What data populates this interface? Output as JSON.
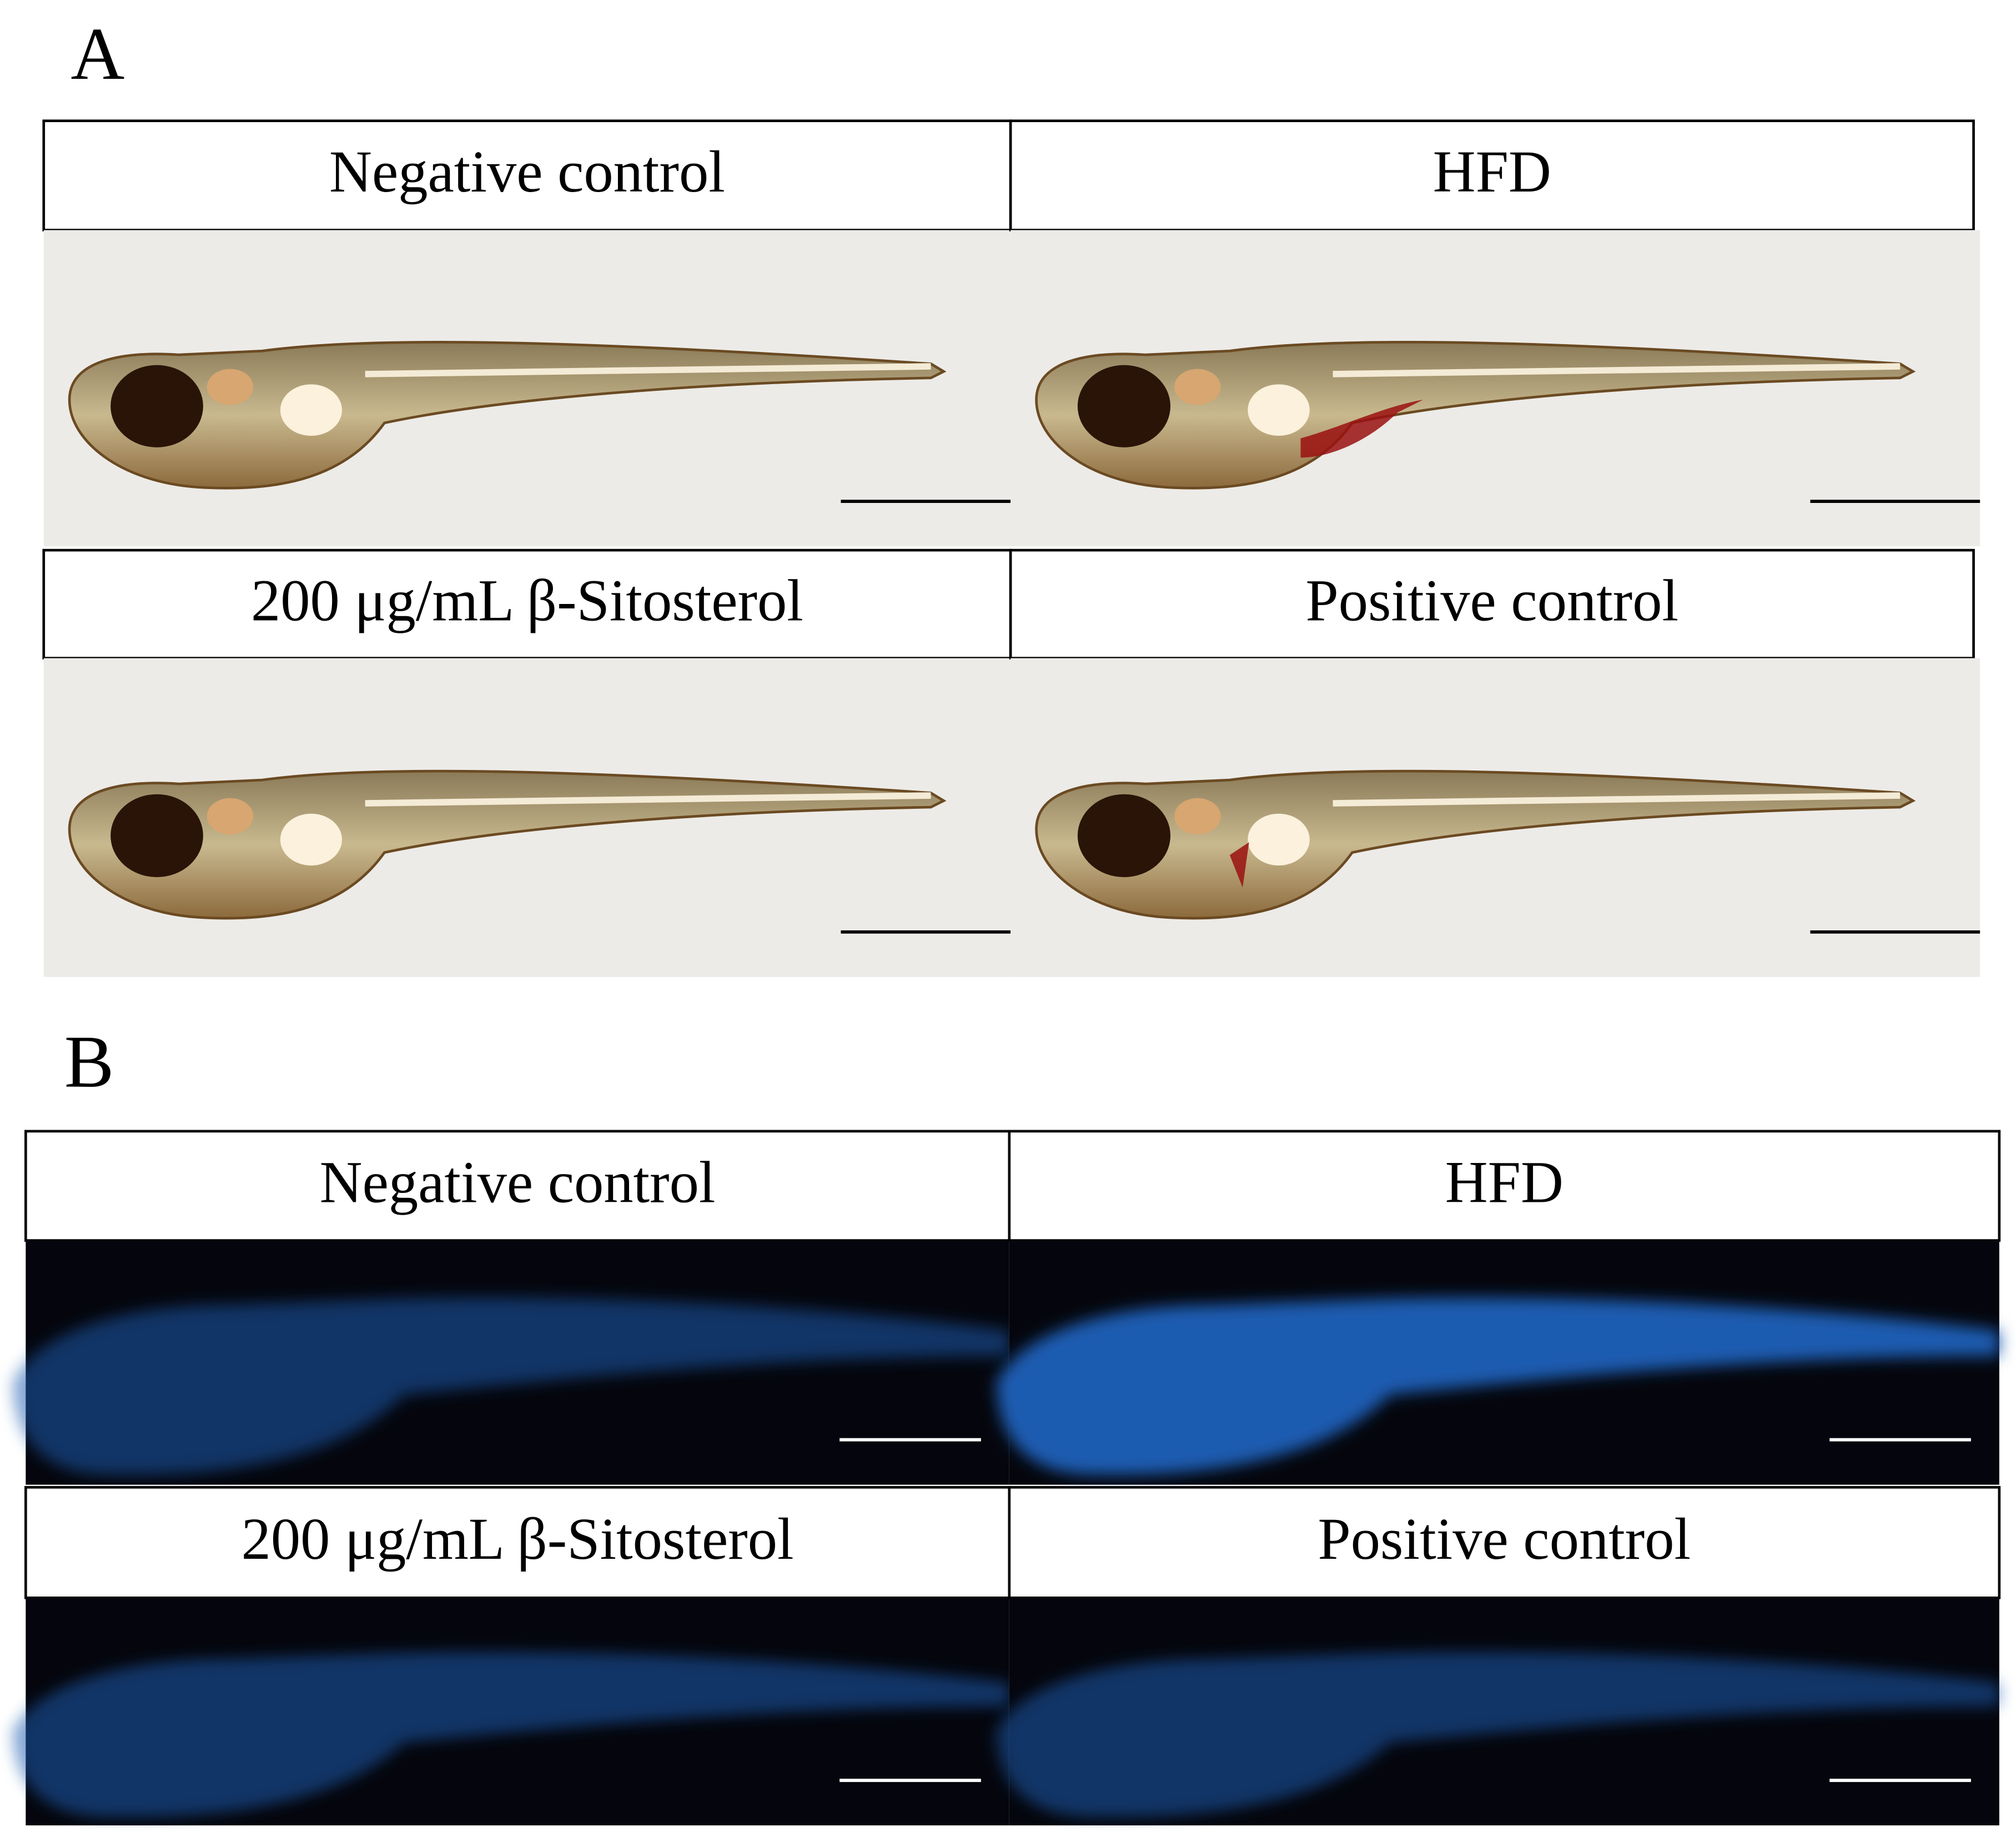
{
  "panels": [
    {
      "label": "A",
      "cells": [
        {
          "title": "Negative control"
        },
        {
          "title": "HFD"
        },
        {
          "title": "200 μg/mL β-Sitosterol"
        },
        {
          "title": "Positive control"
        }
      ]
    },
    {
      "label": "B",
      "cells": [
        {
          "title": "Negative control"
        },
        {
          "title": "HFD"
        },
        {
          "title": "200 μg/mL β-Sitosterol"
        },
        {
          "title": "Positive control"
        }
      ]
    }
  ]
}
